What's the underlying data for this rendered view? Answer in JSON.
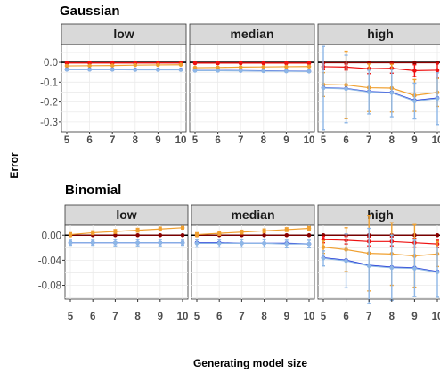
{
  "ylabel": "Error",
  "xlabel": "Generating model size",
  "colors": {
    "dark_red": "#8b0000",
    "red": "#ee1111",
    "orange": "#f0a030",
    "blue": "#1a2fd6",
    "light_blue": "#8db6e6",
    "strip_bg": "#d9d9d9",
    "grid": "#ebebeb"
  },
  "chart_data": [
    {
      "type": "line",
      "title": "Gaussian",
      "x": [
        5,
        6,
        7,
        8,
        9,
        10
      ],
      "ylim": [
        -0.35,
        0.09
      ],
      "yticks": [
        0.0,
        -0.1,
        -0.2,
        -0.3
      ],
      "ytick_labels": [
        "0.0",
        "-0.1",
        "-0.2",
        "-0.3"
      ],
      "panels": [
        {
          "label": "low",
          "series": [
            {
              "color": "dark_red",
              "values": [
                -0.002,
                -0.002,
                -0.002,
                -0.002,
                -0.002,
                -0.002
              ],
              "err": [
                0,
                0,
                0,
                0,
                0,
                0
              ]
            },
            {
              "color": "red",
              "values": [
                -0.003,
                -0.003,
                -0.003,
                -0.003,
                -0.003,
                -0.003
              ],
              "err": [
                0,
                0,
                0,
                0,
                0,
                0
              ]
            },
            {
              "color": "orange",
              "values": [
                -0.018,
                -0.017,
                -0.016,
                -0.014,
                -0.013,
                -0.012
              ],
              "err": [
                0,
                0,
                0,
                0,
                0,
                0
              ]
            },
            {
              "color": "blue",
              "values": [
                -0.036,
                -0.036,
                -0.036,
                -0.037,
                -0.037,
                -0.037
              ],
              "err": [
                0,
                0,
                0,
                0,
                0,
                0
              ]
            },
            {
              "color": "light_blue",
              "values": [
                -0.037,
                -0.037,
                -0.037,
                -0.038,
                -0.038,
                -0.038
              ],
              "err": [
                0,
                0,
                0,
                0,
                0,
                0
              ]
            }
          ]
        },
        {
          "label": "median",
          "series": [
            {
              "color": "dark_red",
              "values": [
                -0.002,
                -0.002,
                -0.002,
                -0.002,
                -0.002,
                -0.002
              ],
              "err": [
                0,
                0,
                0,
                0,
                0,
                0
              ]
            },
            {
              "color": "red",
              "values": [
                -0.004,
                -0.004,
                -0.004,
                -0.004,
                -0.004,
                -0.004
              ],
              "err": [
                0,
                0,
                0,
                0,
                0,
                0
              ]
            },
            {
              "color": "orange",
              "values": [
                -0.027,
                -0.026,
                -0.024,
                -0.023,
                -0.022,
                -0.021
              ],
              "err": [
                0,
                0,
                0,
                0,
                0,
                0
              ]
            },
            {
              "color": "blue",
              "values": [
                -0.041,
                -0.041,
                -0.042,
                -0.043,
                -0.044,
                -0.045
              ],
              "err": [
                0,
                0,
                0,
                0,
                0,
                0
              ]
            },
            {
              "color": "light_blue",
              "values": [
                -0.042,
                -0.042,
                -0.043,
                -0.044,
                -0.045,
                -0.046
              ],
              "err": [
                0,
                0,
                0,
                0,
                0,
                0
              ]
            }
          ]
        },
        {
          "label": "high",
          "series": [
            {
              "color": "dark_red",
              "values": [
                -0.002,
                -0.002,
                -0.002,
                -0.002,
                -0.002,
                -0.002
              ],
              "err": [
                0,
                0,
                0,
                0,
                0,
                0
              ]
            },
            {
              "color": "red",
              "values": [
                -0.022,
                -0.024,
                -0.032,
                -0.03,
                -0.042,
                -0.04
              ],
              "err": [
                0.015,
                0.015,
                0.025,
                0.025,
                0.03,
                0.035
              ]
            },
            {
              "color": "orange",
              "values": [
                -0.112,
                -0.114,
                -0.128,
                -0.13,
                -0.167,
                -0.152
              ],
              "err": [
                0.06,
                0.17,
                0.12,
                0.12,
                0.08,
                0.07
              ]
            },
            {
              "color": "blue",
              "values": [
                -0.128,
                -0.132,
                -0.148,
                -0.152,
                -0.192,
                -0.18
              ],
              "err": [
                0,
                0,
                0,
                0,
                0,
                0
              ]
            },
            {
              "color": "light_blue",
              "values": [
                -0.13,
                -0.134,
                -0.15,
                -0.154,
                -0.195,
                -0.183
              ],
              "err": [
                0.21,
                0.17,
                0.11,
                0.12,
                0.09,
                0.13
              ]
            }
          ]
        }
      ]
    },
    {
      "type": "line",
      "title": "Binomial",
      "x": [
        5,
        6,
        7,
        8,
        9,
        10
      ],
      "ylim": [
        -0.102,
        0.016
      ],
      "yticks": [
        0.0,
        -0.04,
        -0.08
      ],
      "ytick_labels": [
        "0.00",
        "-0.04",
        "-0.08"
      ],
      "panels": [
        {
          "label": "low",
          "series": [
            {
              "color": "dark_red",
              "values": [
                0.0,
                0.0,
                0.0,
                0.0,
                0.0,
                0.0
              ],
              "err": [
                0,
                0,
                0,
                0,
                0,
                0
              ]
            },
            {
              "color": "orange",
              "values": [
                0.001,
                0.004,
                0.006,
                0.008,
                0.01,
                0.012
              ],
              "err": [
                0.003,
                0.003,
                0.003,
                0.003,
                0.003,
                0.002
              ]
            },
            {
              "color": "blue",
              "values": [
                -0.012,
                -0.012,
                -0.012,
                -0.012,
                -0.012,
                -0.012
              ],
              "err": [
                0,
                0,
                0,
                0,
                0,
                0
              ]
            },
            {
              "color": "light_blue",
              "values": [
                -0.012,
                -0.012,
                -0.012,
                -0.012,
                -0.012,
                -0.012
              ],
              "err": [
                0.004,
                0.004,
                0.005,
                0.005,
                0.005,
                0.004
              ]
            }
          ]
        },
        {
          "label": "median",
          "series": [
            {
              "color": "dark_red",
              "values": [
                0.0,
                0.0,
                0.0,
                0.0,
                0.0,
                0.0
              ],
              "err": [
                0,
                0,
                0,
                0,
                0,
                0
              ]
            },
            {
              "color": "orange",
              "values": [
                0.001,
                0.003,
                0.005,
                0.007,
                0.009,
                0.011
              ],
              "err": [
                0.003,
                0.003,
                0.003,
                0.003,
                0.003,
                0.003
              ]
            },
            {
              "color": "blue",
              "values": [
                -0.012,
                -0.012,
                -0.013,
                -0.013,
                -0.013,
                -0.014
              ],
              "err": [
                0,
                0,
                0,
                0,
                0,
                0
              ]
            },
            {
              "color": "light_blue",
              "values": [
                -0.013,
                -0.013,
                -0.013,
                -0.013,
                -0.014,
                -0.014
              ],
              "err": [
                0.006,
                0.006,
                0.006,
                0.006,
                0.006,
                0.006
              ]
            }
          ]
        },
        {
          "label": "high",
          "series": [
            {
              "color": "dark_red",
              "values": [
                0.0,
                0.0,
                0.0,
                0.0,
                0.0,
                0.0
              ],
              "err": [
                0,
                0,
                0,
                0,
                0,
                0
              ]
            },
            {
              "color": "red",
              "values": [
                -0.007,
                -0.008,
                -0.01,
                -0.01,
                -0.012,
                -0.014
              ],
              "err": [
                0.005,
                0.006,
                0.007,
                0.007,
                0.007,
                0.006
              ]
            },
            {
              "color": "orange",
              "values": [
                -0.019,
                -0.023,
                -0.029,
                -0.03,
                -0.033,
                -0.03
              ],
              "err": [
                0.01,
                0.035,
                0.06,
                0.05,
                0.05,
                0.02
              ]
            },
            {
              "color": "blue",
              "values": [
                -0.036,
                -0.04,
                -0.048,
                -0.051,
                -0.052,
                -0.058
              ],
              "err": [
                0,
                0,
                0,
                0,
                0,
                0
              ]
            },
            {
              "color": "light_blue",
              "values": [
                -0.037,
                -0.041,
                -0.049,
                -0.052,
                -0.053,
                -0.059
              ],
              "err": [
                0.012,
                0.043,
                0.06,
                0.052,
                0.045,
                0.04
              ]
            }
          ]
        }
      ]
    }
  ]
}
